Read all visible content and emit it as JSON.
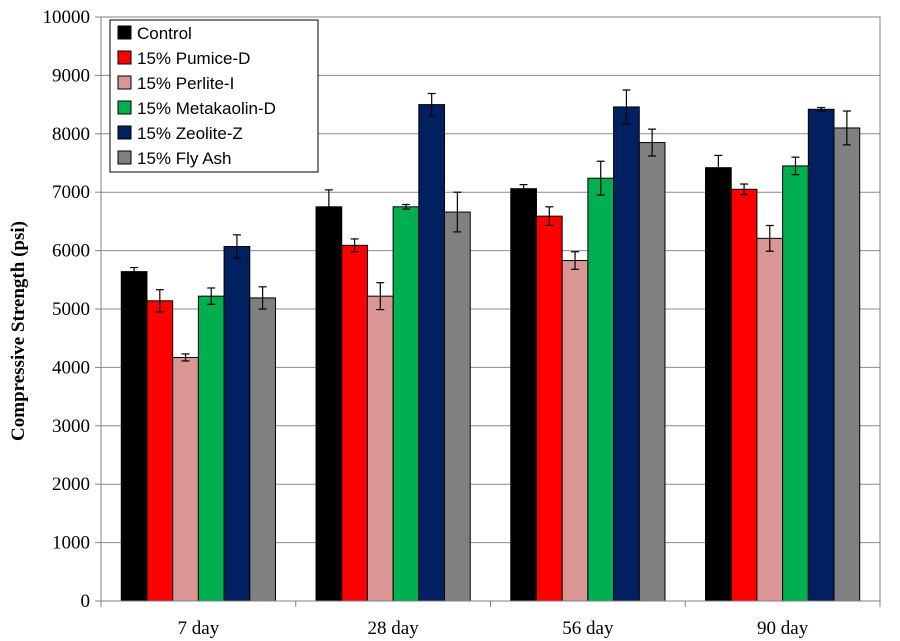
{
  "chart_data": {
    "type": "bar",
    "title": "",
    "xlabel": "",
    "ylabel": "Compressive Strength (psi)",
    "ylim": [
      0,
      10000
    ],
    "yticks": [
      0,
      1000,
      2000,
      3000,
      4000,
      5000,
      6000,
      7000,
      8000,
      9000,
      10000
    ],
    "grid": "horizontal",
    "legend_position": "top-left",
    "categories": [
      "7 day",
      "28 day",
      "56 day",
      "90 day"
    ],
    "series": [
      {
        "name": "Control",
        "color": "#000000",
        "values": [
          5640,
          6750,
          7060,
          7420
        ],
        "errors": [
          70,
          290,
          70,
          210
        ]
      },
      {
        "name": "15% Pumice-D",
        "color": "#ff0000",
        "values": [
          5140,
          6090,
          6590,
          7050
        ],
        "errors": [
          190,
          110,
          160,
          90
        ]
      },
      {
        "name": "15% Perlite-I",
        "color": "#d99694",
        "values": [
          4170,
          5220,
          5830,
          6210
        ],
        "errors": [
          60,
          230,
          150,
          220
        ]
      },
      {
        "name": "15% Metakaolin-D",
        "color": "#00b050",
        "values": [
          5220,
          6750,
          7240,
          7450
        ],
        "errors": [
          140,
          40,
          290,
          150
        ]
      },
      {
        "name": "15% Zeolite-Z",
        "color": "#002060",
        "values": [
          6070,
          8500,
          8460,
          8420
        ],
        "errors": [
          200,
          190,
          290,
          30
        ]
      },
      {
        "name": "15% Fly Ash",
        "color": "#808080",
        "values": [
          5190,
          6660,
          7850,
          8100
        ],
        "errors": [
          190,
          340,
          230,
          290
        ]
      }
    ]
  }
}
